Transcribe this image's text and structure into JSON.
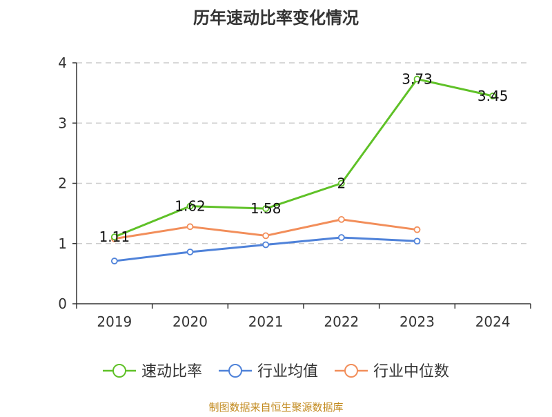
{
  "chart_data": {
    "type": "line",
    "title": "历年速动比率变化情况",
    "xlabel": "",
    "ylabel": "",
    "categories": [
      "2019",
      "2020",
      "2021",
      "2022",
      "2023",
      "2024"
    ],
    "ylim": [
      0,
      4
    ],
    "yticks": [
      0,
      1,
      2,
      3,
      4
    ],
    "grid": "horizontal-dashed",
    "legend_position": "bottom",
    "series": [
      {
        "name": "速动比率",
        "color": "#5fc127",
        "values": [
          1.11,
          1.62,
          1.58,
          2,
          3.73,
          3.45
        ],
        "labels": [
          "1.11",
          "1.62",
          "1.58",
          "2",
          "3.73",
          "3.45"
        ]
      },
      {
        "name": "行业均值",
        "color": "#4f82d9",
        "values": [
          0.71,
          0.86,
          0.98,
          1.1,
          1.04,
          null
        ]
      },
      {
        "name": "行业中位数",
        "color": "#f28e5a",
        "values": [
          1.08,
          1.28,
          1.13,
          1.4,
          1.23,
          null
        ]
      }
    ]
  },
  "footer": {
    "source": "制图数据来自恒生聚源数据库",
    "source_color": "#c28a1e"
  }
}
